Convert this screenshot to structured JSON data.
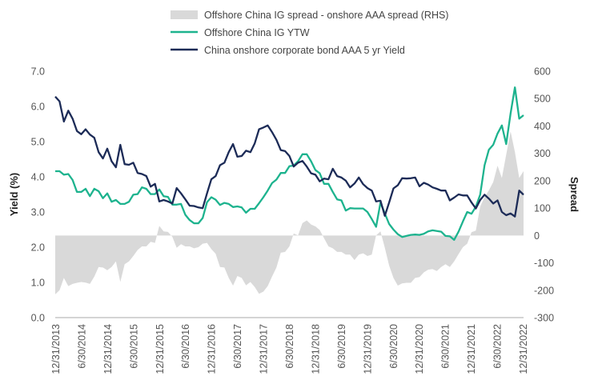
{
  "chart_data": {
    "type": "line",
    "title": "",
    "legend": {
      "placement": "top-center",
      "entries": [
        "Offshore China IG spread - onshore AAA spread (RHS)",
        "Offshore China IG YTW",
        "China onshore corporate bond AAA 5 yr Yield"
      ]
    },
    "ylabel_left": "Yield (%)",
    "ylabel_right": "Spread",
    "ylim_left": [
      0,
      7
    ],
    "ylim_right": [
      -300,
      600
    ],
    "yticks_left": [
      "7.0",
      "6.0",
      "5.0",
      "4.0",
      "3.0",
      "2.0",
      "1.0",
      "0.0"
    ],
    "yticks_right": [
      "600",
      "500",
      "400",
      "300",
      "200",
      "100",
      "0",
      "-100",
      "-200",
      "-300"
    ],
    "xticks": [
      "12/31/2013",
      "6/30/2014",
      "12/31/2014",
      "6/30/2015",
      "12/31/2015",
      "6/30/2016",
      "12/31/2016",
      "6/30/2017",
      "12/31/2017",
      "6/30/2018",
      "12/31/2018",
      "6/30/2019",
      "12/31/2019",
      "6/30/2020",
      "12/31/2020",
      "6/30/2021",
      "12/31/2021",
      "6/30/2022",
      "12/31/2022"
    ],
    "grid": false,
    "colors": {
      "spread": "#d9d9d9",
      "ytw": "#1db38e",
      "onshore": "#1c2b57"
    },
    "x": [
      "2013-12",
      "2014-01",
      "2014-02",
      "2014-03",
      "2014-04",
      "2014-05",
      "2014-06",
      "2014-07",
      "2014-08",
      "2014-09",
      "2014-10",
      "2014-11",
      "2014-12",
      "2015-01",
      "2015-02",
      "2015-03",
      "2015-04",
      "2015-05",
      "2015-06",
      "2015-07",
      "2015-08",
      "2015-09",
      "2015-10",
      "2015-11",
      "2015-12",
      "2016-01",
      "2016-02",
      "2016-03",
      "2016-04",
      "2016-05",
      "2016-06",
      "2016-07",
      "2016-08",
      "2016-09",
      "2016-10",
      "2016-11",
      "2016-12",
      "2017-01",
      "2017-02",
      "2017-03",
      "2017-04",
      "2017-05",
      "2017-06",
      "2017-07",
      "2017-08",
      "2017-09",
      "2017-10",
      "2017-11",
      "2017-12",
      "2018-01",
      "2018-02",
      "2018-03",
      "2018-04",
      "2018-05",
      "2018-06",
      "2018-07",
      "2018-08",
      "2018-09",
      "2018-10",
      "2018-11",
      "2018-12",
      "2019-01",
      "2019-02",
      "2019-03",
      "2019-04",
      "2019-05",
      "2019-06",
      "2019-07",
      "2019-08",
      "2019-09",
      "2019-10",
      "2019-11",
      "2019-12",
      "2020-01",
      "2020-02",
      "2020-03",
      "2020-04",
      "2020-05",
      "2020-06",
      "2020-07",
      "2020-08",
      "2020-09",
      "2020-10",
      "2020-11",
      "2020-12",
      "2021-01",
      "2021-02",
      "2021-03",
      "2021-04",
      "2021-05",
      "2021-06",
      "2021-07",
      "2021-08",
      "2021-09",
      "2021-10",
      "2021-11",
      "2021-12",
      "2022-01",
      "2022-02",
      "2022-03",
      "2022-04",
      "2022-05",
      "2022-06",
      "2022-07",
      "2022-08",
      "2022-09",
      "2022-10",
      "2022-11",
      "2022-12"
    ],
    "series": [
      {
        "name": "Offshore China IG spread - onshore AAA spread (RHS)",
        "type": "area",
        "axis": "right",
        "values": [
          -215,
          -200,
          -155,
          -185,
          -177,
          -173,
          -170,
          -172,
          -177,
          -150,
          -115,
          -117,
          -127,
          -115,
          -95,
          -170,
          -105,
          -95,
          -75,
          -53,
          -40,
          -40,
          -23,
          -27,
          35,
          15,
          13,
          -5,
          -45,
          -32,
          -40,
          -40,
          -47,
          -43,
          -30,
          -27,
          -50,
          -67,
          -115,
          -117,
          -155,
          -183,
          -148,
          -155,
          -182,
          -170,
          -188,
          -213,
          -205,
          -185,
          -150,
          -117,
          -63,
          -60,
          -40,
          7,
          0,
          45,
          55,
          40,
          33,
          20,
          -10,
          -40,
          -47,
          -60,
          -60,
          -70,
          -70,
          -90,
          -70,
          -65,
          -75,
          -70,
          0,
          15,
          -45,
          -110,
          -155,
          -183,
          -175,
          -173,
          -173,
          -155,
          -152,
          -135,
          -125,
          -123,
          -130,
          -115,
          -105,
          -115,
          -95,
          -68,
          -43,
          -30,
          12,
          18,
          105,
          140,
          165,
          195,
          255,
          210,
          295,
          380,
          305,
          210,
          235
        ]
      },
      {
        "name": "Offshore China IG YTW",
        "type": "line",
        "axis": "left",
        "values": [
          4.16,
          4.16,
          4.06,
          4.08,
          3.91,
          3.57,
          3.57,
          3.66,
          3.45,
          3.66,
          3.59,
          3.39,
          3.53,
          3.29,
          3.34,
          3.23,
          3.23,
          3.29,
          3.49,
          3.51,
          3.7,
          3.66,
          3.51,
          3.51,
          3.64,
          3.45,
          3.43,
          3.21,
          3.21,
          3.23,
          2.92,
          2.77,
          2.68,
          2.68,
          2.83,
          3.28,
          3.42,
          3.35,
          3.2,
          3.26,
          3.23,
          3.14,
          3.16,
          3.13,
          2.98,
          3.09,
          3.09,
          3.25,
          3.42,
          3.61,
          3.82,
          3.92,
          4.11,
          4.11,
          4.3,
          4.32,
          4.44,
          4.64,
          4.64,
          4.44,
          4.19,
          4.1,
          3.8,
          3.8,
          3.57,
          3.36,
          3.33,
          3.04,
          3.11,
          3.1,
          3.1,
          3.1,
          3.0,
          2.8,
          2.58,
          3.27,
          2.96,
          2.66,
          2.5,
          2.37,
          2.29,
          2.32,
          2.35,
          2.36,
          2.35,
          2.38,
          2.45,
          2.48,
          2.46,
          2.44,
          2.32,
          2.31,
          2.21,
          2.44,
          2.73,
          3.0,
          2.95,
          3.15,
          3.49,
          4.33,
          4.77,
          4.91,
          5.23,
          5.46,
          4.93,
          5.8,
          6.54,
          5.65,
          5.75
        ]
      },
      {
        "name": "China onshore corporate bond AAA 5 yr Yield",
        "type": "line",
        "axis": "left",
        "values": [
          6.28,
          6.14,
          5.57,
          5.88,
          5.65,
          5.3,
          5.21,
          5.35,
          5.2,
          5.11,
          4.7,
          4.52,
          4.8,
          4.44,
          4.27,
          4.91,
          4.36,
          4.34,
          4.4,
          4.11,
          4.08,
          4.02,
          3.72,
          3.8,
          3.3,
          3.34,
          3.3,
          3.24,
          3.68,
          3.53,
          3.36,
          3.18,
          3.17,
          3.13,
          3.11,
          3.53,
          3.93,
          4.02,
          4.33,
          4.4,
          4.7,
          4.93,
          4.57,
          4.59,
          4.74,
          4.7,
          4.95,
          5.35,
          5.4,
          5.46,
          5.27,
          5.05,
          4.76,
          4.73,
          4.59,
          4.29,
          4.4,
          4.45,
          4.29,
          4.1,
          4.06,
          3.87,
          3.95,
          3.93,
          4.23,
          4.02,
          3.98,
          3.89,
          3.7,
          3.81,
          3.98,
          3.79,
          3.68,
          3.61,
          3.3,
          3.32,
          2.89,
          3.27,
          3.67,
          3.76,
          3.96,
          3.95,
          3.96,
          3.98,
          3.73,
          3.83,
          3.78,
          3.7,
          3.66,
          3.61,
          3.61,
          3.33,
          3.41,
          3.5,
          3.47,
          3.47,
          3.27,
          3.1,
          3.34,
          3.49,
          3.38,
          3.24,
          3.33,
          3.0,
          2.91,
          2.96,
          2.87,
          3.61,
          3.49
        ]
      }
    ]
  }
}
